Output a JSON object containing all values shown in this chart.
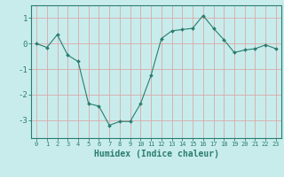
{
  "xlabel": "Humidex (Indice chaleur)",
  "x": [
    0,
    1,
    2,
    3,
    4,
    5,
    6,
    7,
    8,
    9,
    10,
    11,
    12,
    13,
    14,
    15,
    16,
    17,
    18,
    19,
    20,
    21,
    22,
    23
  ],
  "y": [
    0.0,
    -0.15,
    0.35,
    -0.45,
    -0.7,
    -2.35,
    -2.45,
    -3.2,
    -3.05,
    -3.05,
    -2.35,
    -1.25,
    0.2,
    0.5,
    0.55,
    0.6,
    1.1,
    0.6,
    0.15,
    -0.35,
    -0.25,
    -0.2,
    -0.05,
    -0.2
  ],
  "line_color": "#2a7d6e",
  "marker": "D",
  "marker_size": 2.0,
  "bg_color": "#c8ecec",
  "grid_color": "#dba8a8",
  "axis_color": "#2a7d6e",
  "tick_color": "#2a7d6e",
  "ylim": [
    -3.7,
    1.5
  ],
  "yticks": [
    -3,
    -2,
    -1,
    0,
    1
  ],
  "xlim": [
    -0.5,
    23.5
  ]
}
